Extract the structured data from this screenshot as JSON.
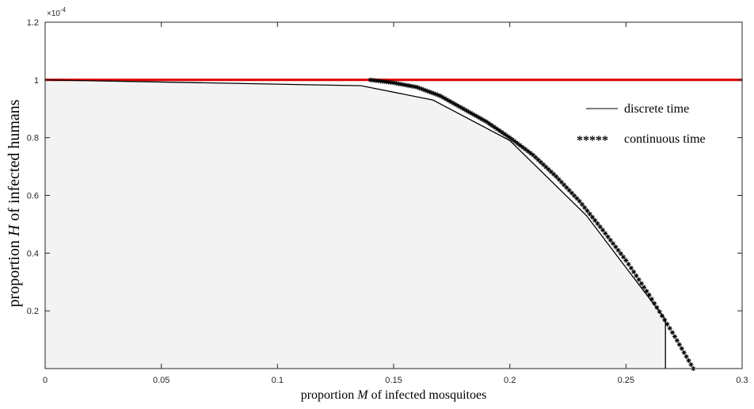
{
  "chart_data": {
    "type": "line",
    "xlabel": {
      "prefix": "proportion ",
      "var": "M",
      "suffix": " of infected mosquitoes"
    },
    "ylabel": {
      "prefix": "proportion ",
      "var": "H",
      "suffix": " of infected humans"
    },
    "xlim": [
      0,
      0.3
    ],
    "ylim": [
      0,
      1.2
    ],
    "y_exponent_label": "×10",
    "y_exponent_power": "-4",
    "xticks": [
      {
        "value": 0,
        "label": "0"
      },
      {
        "value": 0.05,
        "label": "0.05"
      },
      {
        "value": 0.1,
        "label": "0.1"
      },
      {
        "value": 0.15,
        "label": "0.15"
      },
      {
        "value": 0.2,
        "label": "0.2"
      },
      {
        "value": 0.25,
        "label": "0.25"
      },
      {
        "value": 0.3,
        "label": "0.3"
      }
    ],
    "yticks": [
      {
        "value": 0.2,
        "label": "0.2"
      },
      {
        "value": 0.4,
        "label": "0.4"
      },
      {
        "value": 0.6,
        "label": "0.6"
      },
      {
        "value": 0.8,
        "label": "0.8"
      },
      {
        "value": 1.0,
        "label": "1"
      },
      {
        "value": 1.2,
        "label": "1.2"
      }
    ],
    "grid": false,
    "legend_position": "right",
    "colors": {
      "boundary": "#e00000",
      "region_fill": "#f3f3f3",
      "series": "#000000",
      "axes": "#262626"
    },
    "series": [
      {
        "name": "discrete time",
        "style": "line",
        "x": [
          0,
          0.136,
          0.167,
          0.2,
          0.233,
          0.267,
          0.267
        ],
        "y": [
          1.0,
          0.98,
          0.93,
          0.79,
          0.53,
          0.17,
          0
        ]
      },
      {
        "name": "continuous time",
        "style": "asterisk",
        "legend_marker": "*****",
        "x": [
          0.14,
          0.15,
          0.16,
          0.17,
          0.18,
          0.19,
          0.2,
          0.21,
          0.22,
          0.23,
          0.24,
          0.25,
          0.26,
          0.27,
          0.279
        ],
        "y": [
          1.0,
          0.99,
          0.975,
          0.945,
          0.9,
          0.855,
          0.8,
          0.74,
          0.665,
          0.58,
          0.48,
          0.375,
          0.255,
          0.125,
          0
        ]
      },
      {
        "x": [
          0,
          0.3
        ],
        "y": [
          1.0,
          1.0
        ]
      }
    ]
  }
}
